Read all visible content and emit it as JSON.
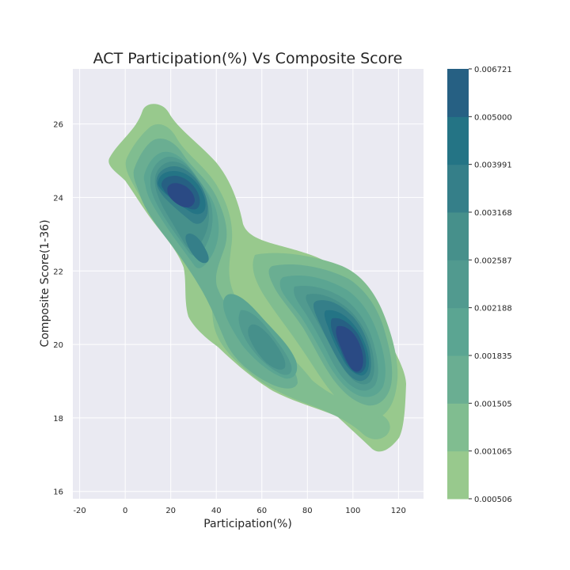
{
  "chart_data": {
    "type": "kde_contour",
    "title": "ACT Participation(%) Vs Composite Score",
    "xlabel": "Participation(%)",
    "ylabel": "Composite Score(1-36)",
    "xlim": [
      -23,
      131
    ],
    "ylim": [
      15.8,
      27.5
    ],
    "xticks": [
      -20,
      0,
      20,
      40,
      60,
      80,
      100,
      120
    ],
    "yticks": [
      16,
      18,
      20,
      22,
      24,
      26
    ],
    "grid": true,
    "colorbar": {
      "levels": [
        "0.000506",
        "0.001065",
        "0.001505",
        "0.001835",
        "0.002188",
        "0.002587",
        "0.003168",
        "0.003991",
        "0.005000",
        "0.006721"
      ],
      "colors": [
        "#98c98d",
        "#80bd90",
        "#6aae92",
        "#5ba592",
        "#519a8f",
        "#46908b",
        "#357f89",
        "#247485",
        "#266083",
        "#2a4a84"
      ]
    },
    "density_peaks": [
      {
        "x": 23,
        "y": 24.1
      },
      {
        "x": 98,
        "y": 19.8
      }
    ],
    "secondary_modes": [
      {
        "x": 30,
        "y": 22.5
      },
      {
        "x": 62,
        "y": 19.8
      }
    ]
  }
}
